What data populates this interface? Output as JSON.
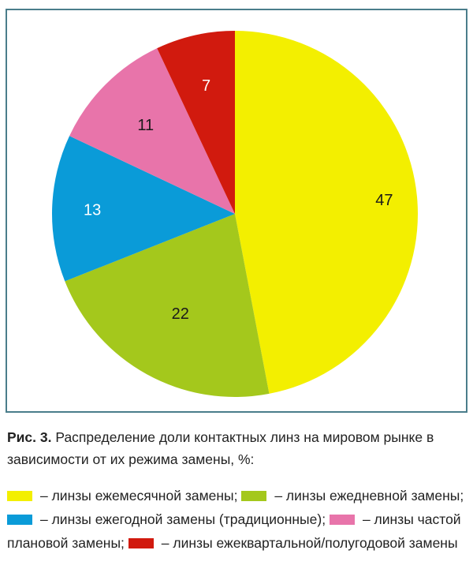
{
  "chart_data": {
    "type": "pie",
    "slices": [
      {
        "label": "линзы ежемесячной замены",
        "value": 47,
        "color": "#f3ef00"
      },
      {
        "label": "линзы ежедневной замены",
        "value": 22,
        "color": "#a4c81c"
      },
      {
        "label": "линзы ежегодной замены (традиционные)",
        "value": 13,
        "color": "#0a9bd8"
      },
      {
        "label": "линзы частой плановой замены",
        "value": 11,
        "color": "#e874aa"
      },
      {
        "label": "линзы ежеквартальной/полугодовой замены",
        "value": 7,
        "color": "#d11a0e"
      }
    ],
    "data_labels": [
      "47",
      "22",
      "13",
      "11",
      "7"
    ],
    "start": "12 o'clock, clockwise",
    "legend_placement": "below"
  },
  "caption": {
    "label": "Рис. 3.",
    "text": "Распределение доли контактных линз на мировом рынке в зависимости от их режима замены, %:"
  },
  "legend": {
    "items": [
      {
        "text": "– линзы ежемесячной замены;",
        "color": "#f3ef00"
      },
      {
        "text": "– линзы ежедневной замены;",
        "color": "#a4c81c"
      },
      {
        "text": "– линзы ежегодной замены (традиционные);",
        "color": "#0a9bd8"
      },
      {
        "text": "– линзы частой плановой замены;",
        "color": "#e874aa"
      },
      {
        "text": "– линзы ежеквартальной/полугодовой замены",
        "color": "#d11a0e"
      }
    ]
  }
}
